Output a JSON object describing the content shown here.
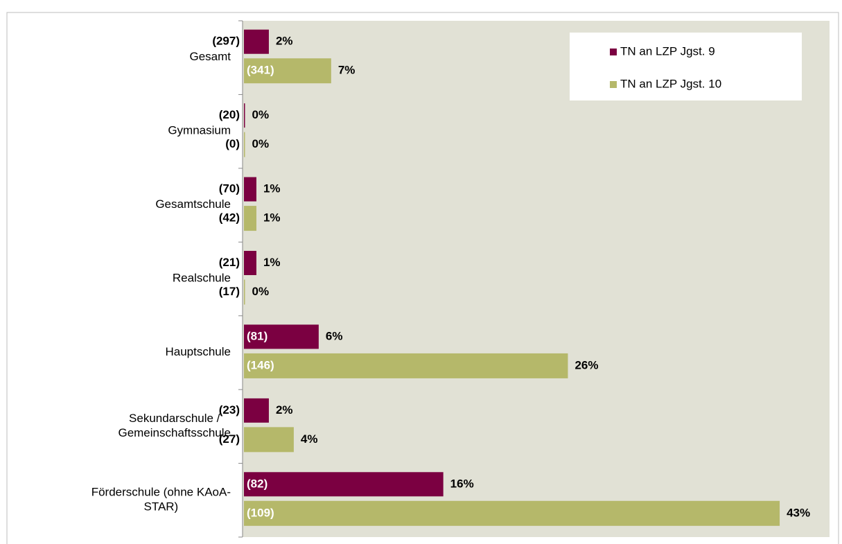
{
  "chart_data": {
    "type": "hbar_grouped",
    "categories": [
      "Gesamt",
      "Gymnasium",
      "Gesamtschule",
      "Realschule",
      "Hauptschule",
      "Sekundarschule / Gemeinschaftsschule",
      "Förderschule (ohne KAoA-STAR)"
    ],
    "series": [
      {
        "name": "TN an LZP Jgst. 9",
        "color": "#7b0041",
        "values": [
          2,
          0,
          1,
          1,
          6,
          2,
          16
        ],
        "value_labels": [
          "2%",
          "0%",
          "1%",
          "1%",
          "6%",
          "2%",
          "16%"
        ],
        "count_labels": [
          "(297)",
          "(20)",
          "(70)",
          "(21)",
          "(81)",
          "(23)",
          "(82)"
        ]
      },
      {
        "name": "TN an LZP Jgst. 10",
        "color": "#b5b86a",
        "values": [
          7,
          0,
          1,
          0,
          26,
          4,
          43
        ],
        "value_labels": [
          "7%",
          "0%",
          "1%",
          "0%",
          "26%",
          "4%",
          "43%"
        ],
        "count_labels": [
          "(341)",
          "(0)",
          "(42)",
          "(17)",
          "(146)",
          "(27)",
          "(109)"
        ]
      }
    ],
    "xlim": [
      0,
      47
    ],
    "legend": "upper right",
    "background": "#e1e1d5"
  }
}
